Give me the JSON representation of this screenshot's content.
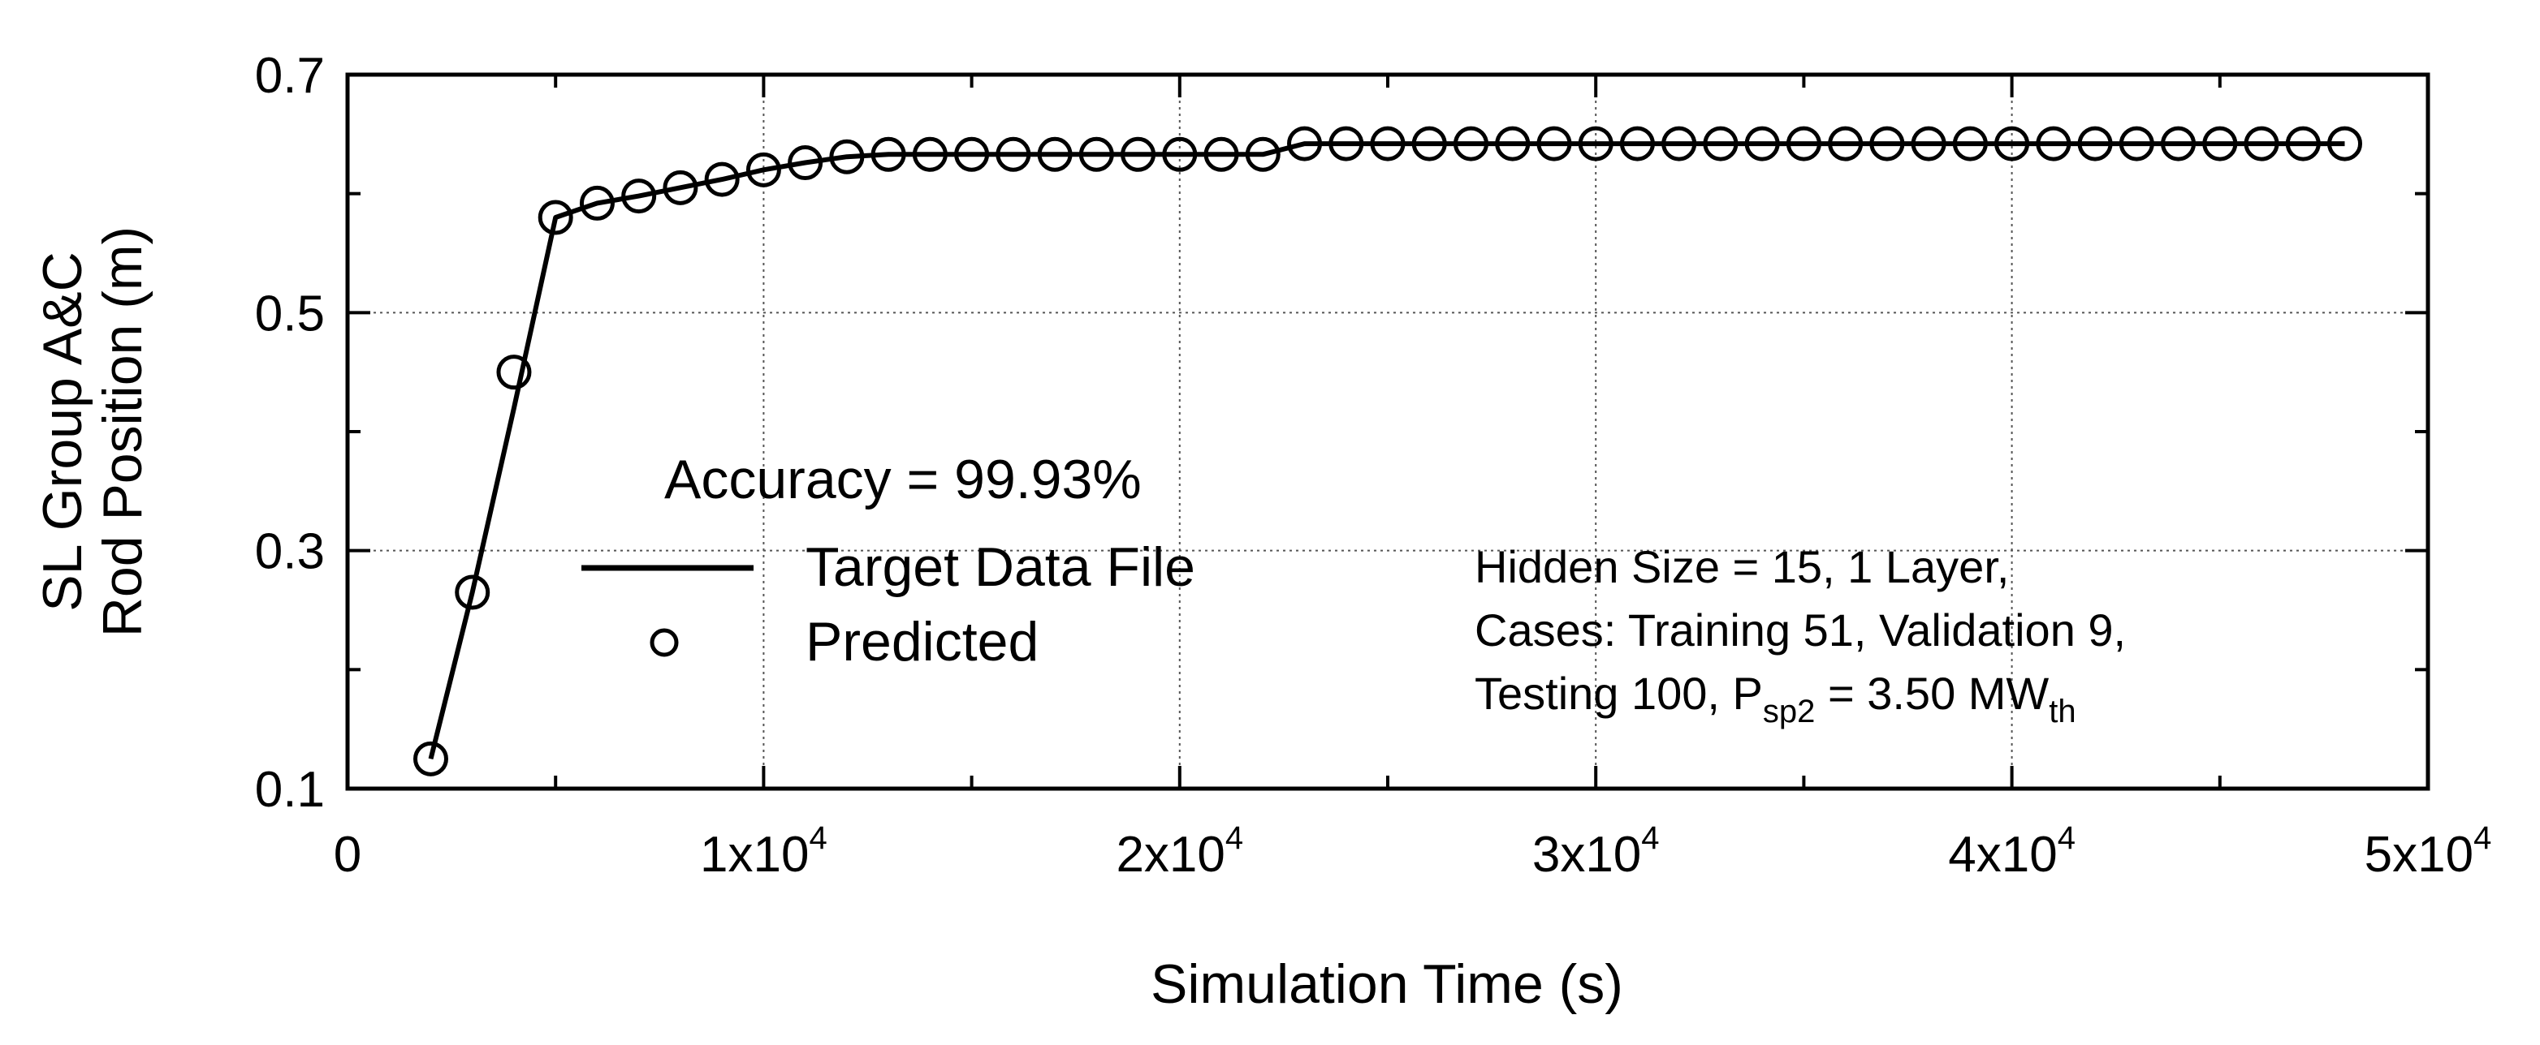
{
  "chart_data": {
    "type": "line",
    "xlabel": "Simulation Time (s)",
    "ylabel_line1": "SL Group A&C",
    "ylabel_line2": "Rod Position (m)",
    "xlim": [
      0,
      50000
    ],
    "ylim": [
      0.1,
      0.7
    ],
    "x_ticks": [
      0,
      10000,
      20000,
      30000,
      40000,
      50000
    ],
    "x_tick_labels": [
      {
        "base": "0",
        "exp": ""
      },
      {
        "base": "1x10",
        "exp": "4"
      },
      {
        "base": "2x10",
        "exp": "4"
      },
      {
        "base": "3x10",
        "exp": "4"
      },
      {
        "base": "4x10",
        "exp": "4"
      },
      {
        "base": "5x10",
        "exp": "4"
      }
    ],
    "y_ticks": [
      0.1,
      0.3,
      0.5,
      0.7
    ],
    "y_tick_labels": [
      "0.1",
      "0.3",
      "0.5",
      "0.7"
    ],
    "grid": true,
    "legend_placement": "center-left",
    "accuracy_text": "Accuracy = 99.93%",
    "series": [
      {
        "name": "Target Data File",
        "style": "solid-line",
        "x": [
          2000,
          3000,
          4000,
          5000,
          6000,
          7000,
          8000,
          9000,
          10000,
          11000,
          12000,
          13000,
          14000,
          15000,
          16000,
          17000,
          18000,
          19000,
          20000,
          21000,
          22000,
          23000,
          24000,
          25000,
          26000,
          27000,
          28000,
          29000,
          30000,
          31000,
          32000,
          33000,
          34000,
          35000,
          36000,
          37000,
          38000,
          39000,
          40000,
          41000,
          42000,
          43000,
          44000,
          45000,
          46000,
          47000,
          48000
        ],
        "y": [
          0.125,
          0.265,
          0.42,
          0.58,
          0.592,
          0.598,
          0.605,
          0.612,
          0.62,
          0.626,
          0.631,
          0.633,
          0.633,
          0.633,
          0.633,
          0.633,
          0.633,
          0.633,
          0.633,
          0.633,
          0.633,
          0.642,
          0.642,
          0.642,
          0.642,
          0.642,
          0.642,
          0.642,
          0.642,
          0.642,
          0.642,
          0.642,
          0.642,
          0.642,
          0.642,
          0.642,
          0.642,
          0.642,
          0.642,
          0.642,
          0.642,
          0.642,
          0.642,
          0.642,
          0.642,
          0.642,
          0.642
        ]
      },
      {
        "name": "Predicted",
        "style": "open-circle",
        "x": [
          2000,
          3000,
          4000,
          5000,
          6000,
          7000,
          8000,
          9000,
          10000,
          11000,
          12000,
          13000,
          14000,
          15000,
          16000,
          17000,
          18000,
          19000,
          20000,
          21000,
          22000,
          23000,
          24000,
          25000,
          26000,
          27000,
          28000,
          29000,
          30000,
          31000,
          32000,
          33000,
          34000,
          35000,
          36000,
          37000,
          38000,
          39000,
          40000,
          41000,
          42000,
          43000,
          44000,
          45000,
          46000,
          47000,
          48000
        ],
        "y": [
          0.125,
          0.265,
          0.45,
          0.58,
          0.592,
          0.598,
          0.605,
          0.612,
          0.62,
          0.626,
          0.631,
          0.633,
          0.633,
          0.633,
          0.633,
          0.633,
          0.633,
          0.633,
          0.633,
          0.633,
          0.633,
          0.642,
          0.642,
          0.642,
          0.642,
          0.642,
          0.642,
          0.642,
          0.642,
          0.642,
          0.642,
          0.642,
          0.642,
          0.642,
          0.642,
          0.642,
          0.642,
          0.642,
          0.642,
          0.642,
          0.642,
          0.642,
          0.642,
          0.642,
          0.642,
          0.642,
          0.642
        ]
      }
    ],
    "info_box": {
      "line1": "Hidden Size = 15, 1 Layer,",
      "line2": "Cases: Training 51, Validation 9,",
      "line3_prefix": "Testing 100, P",
      "line3_sub": "sp2",
      "line3_mid": " = 3.50 MW",
      "line3_sub2": "th"
    }
  }
}
